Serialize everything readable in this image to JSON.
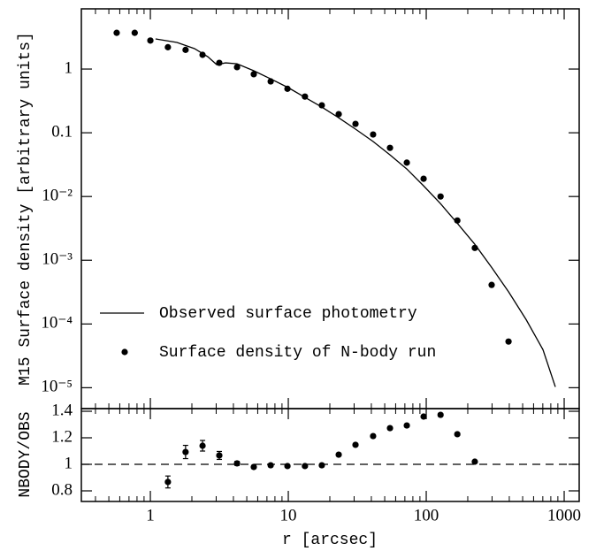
{
  "chart_data": [
    {
      "type": "line",
      "y_label": "M15 Surface density  [arbitrary units]",
      "log_x": true,
      "log_y": true,
      "xlim": [
        0.316,
        1285
      ],
      "xticks": [
        1,
        10,
        100,
        1000
      ],
      "xminor": [
        0.4,
        0.5,
        0.6,
        0.7,
        0.8,
        0.9,
        2,
        3,
        4,
        5,
        6,
        7,
        8,
        9,
        20,
        30,
        40,
        50,
        60,
        70,
        80,
        90,
        200,
        300,
        400,
        500,
        600,
        700,
        800,
        900
      ],
      "ylim": [
        4.7e-06,
        8.8
      ],
      "yticks": [
        1,
        0.1,
        {
          "value": 0.01,
          "label": "10⁻²"
        },
        {
          "value": 0.001,
          "label": "10⁻³"
        },
        {
          "value": 0.0001,
          "label": "10⁻⁴"
        },
        {
          "value": 1e-05,
          "label": "10⁻⁵"
        }
      ],
      "legend": "lower left",
      "series": [
        {
          "name": "Observed surface photometry",
          "kind": "line",
          "color": "#000000",
          "x": [
            1.09,
            1.56,
            2.09,
            2.61,
            3.03,
            3.51,
            4.25,
            5.62,
            7.45,
            10,
            13.2,
            17.5,
            23.2,
            30.7,
            41.2,
            54.6,
            72.3,
            95.7,
            127,
            168,
            225,
            298,
            395,
            530,
            702,
            863
          ],
          "values": [
            2.97,
            2.61,
            2.09,
            1.56,
            1.17,
            1.25,
            1.21,
            0.94,
            0.7,
            0.51,
            0.36,
            0.253,
            0.172,
            0.114,
            0.073,
            0.045,
            0.027,
            0.0147,
            0.0077,
            0.0038,
            0.00178,
            0.00077,
            0.00032,
            0.000117,
            3.95e-05,
            1.03e-05
          ]
        },
        {
          "name": "Surface density of N-body run",
          "kind": "scatter",
          "color": "#000000",
          "x": [
            0.57,
            0.77,
            1.0,
            1.34,
            1.8,
            2.39,
            3.16,
            4.25,
            5.62,
            7.45,
            9.86,
            13.2,
            17.5,
            23.2,
            30.7,
            41.2,
            54.6,
            72.3,
            95.7,
            127,
            168,
            225,
            298,
            395
          ],
          "values": [
            3.7,
            3.7,
            2.8,
            2.2,
            2.0,
            1.67,
            1.25,
            1.07,
            0.83,
            0.64,
            0.49,
            0.37,
            0.27,
            0.196,
            0.138,
            0.094,
            0.058,
            0.034,
            0.019,
            0.01,
            0.0042,
            0.00156,
            0.00041,
            5.3e-05
          ]
        }
      ]
    },
    {
      "type": "scatter",
      "x_label": "r [arcsec]",
      "y_label": "NBODY/OBS",
      "log_x": true,
      "xlim": [
        0.316,
        1285
      ],
      "xticks": [
        1,
        10,
        100,
        1000
      ],
      "xminor": [
        0.4,
        0.5,
        0.6,
        0.7,
        0.8,
        0.9,
        2,
        3,
        4,
        5,
        6,
        7,
        8,
        9,
        20,
        30,
        40,
        50,
        60,
        70,
        80,
        90,
        200,
        300,
        400,
        500,
        600,
        700,
        800,
        900
      ],
      "ylim": [
        0.72,
        1.42
      ],
      "yticks": [
        0.8,
        1,
        1.2,
        1.4
      ],
      "reference_line": 1,
      "x": [
        1.34,
        1.8,
        2.39,
        3.16,
        4.25,
        5.62,
        7.45,
        9.86,
        13.2,
        17.5,
        23.2,
        30.7,
        41.2,
        54.6,
        72.3,
        95.7,
        127,
        168,
        225
      ],
      "values": [
        0.867,
        1.093,
        1.14,
        1.067,
        1.007,
        0.98,
        0.993,
        0.987,
        0.987,
        0.993,
        1.073,
        1.147,
        1.213,
        1.273,
        1.293,
        1.36,
        1.373,
        1.227,
        1.02
      ],
      "errors": [
        0.045,
        0.05,
        0.04,
        0.03,
        0.015,
        0.012,
        0.01,
        0.01,
        0.01,
        0.01,
        0.008,
        0.008,
        0.008,
        0.008,
        0.008,
        0.01,
        0.01,
        0.01,
        0.008
      ],
      "color": "#000000"
    }
  ]
}
